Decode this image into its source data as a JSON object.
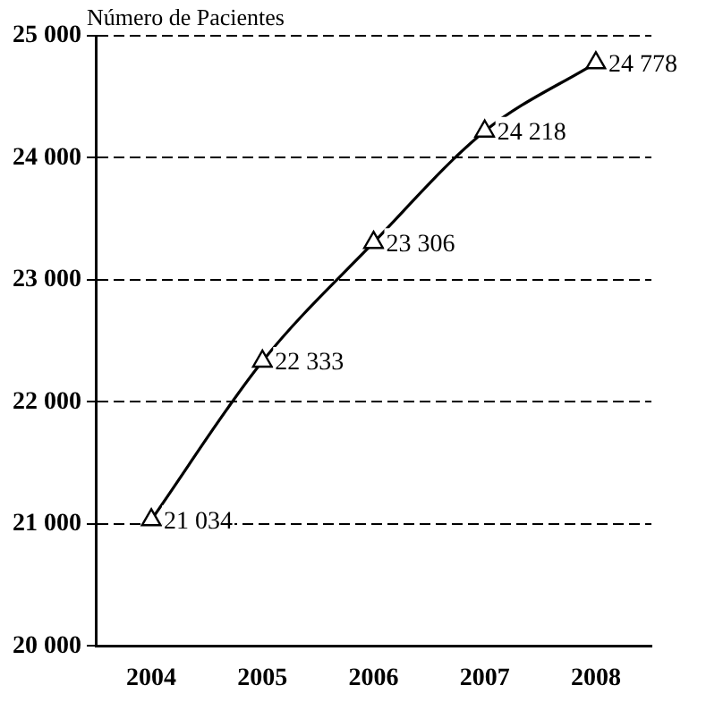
{
  "chart_data": {
    "type": "line",
    "ylabel": "Número de Pacientes",
    "categories": [
      "2004",
      "2005",
      "2006",
      "2007",
      "2008"
    ],
    "series": [
      {
        "color": "#000000",
        "values": [
          21034,
          22333,
          23306,
          24218,
          24778
        ],
        "value_labels": [
          "21 034",
          "22 333",
          "23 306",
          "24 218",
          "24 778"
        ]
      }
    ],
    "ylim": [
      20000,
      25000
    ],
    "yticks": [
      {
        "value": 20000,
        "label": "20 000"
      },
      {
        "value": 21000,
        "label": "21 000"
      },
      {
        "value": 22000,
        "label": "22 000"
      },
      {
        "value": 23000,
        "label": "23 000"
      },
      {
        "value": 24000,
        "label": "24 000"
      },
      {
        "value": 25000,
        "label": "25 000"
      }
    ],
    "grid": "y",
    "marker": "triangle",
    "line_style": "solid",
    "legend": false
  }
}
